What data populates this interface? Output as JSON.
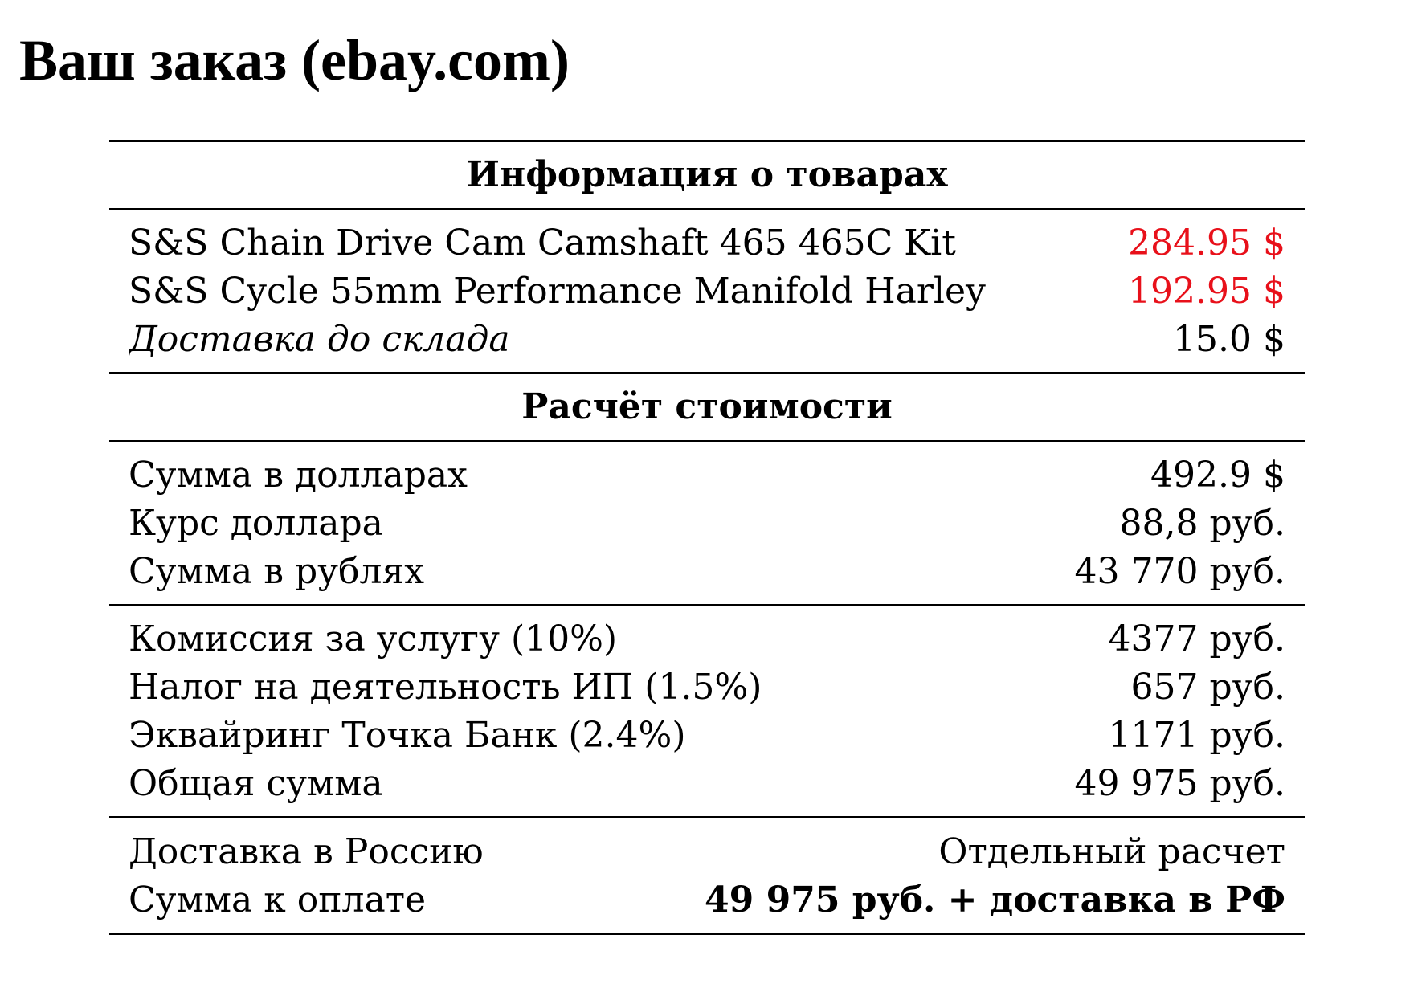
{
  "title": "Ваш заказ (ebay.com)",
  "colors": {
    "price": "#e8101a",
    "text": "#000000",
    "background": "#ffffff"
  },
  "items_section": {
    "header": "Информация о товарах",
    "items": [
      {
        "name": "S&S Chain Drive Cam Camshaft 465 465C Kit",
        "price": "284.95 $"
      },
      {
        "name": "S&S Cycle 55mm Performance Manifold Harley",
        "price": "192.95 $"
      }
    ],
    "shipping": {
      "label": "Доставка до склада",
      "value": "15.0 $"
    }
  },
  "calc_section": {
    "header": "Расчёт стоимости",
    "conversion": [
      {
        "label": "Сумма в долларах",
        "value": "492.9 $"
      },
      {
        "label": "Курс доллара",
        "value": "88,8 руб."
      },
      {
        "label": "Сумма в рублях",
        "value": "43 770 руб."
      }
    ],
    "fees": [
      {
        "label": "Комиссия за услугу (10%)",
        "value": "4377 руб."
      },
      {
        "label": "Налог на деятельность ИП (1.5%)",
        "value": "657 руб."
      },
      {
        "label": "Эквайринг Точка Банк (2.4%)",
        "value": "1171 руб."
      },
      {
        "label": "Общая сумма",
        "value": "49 975 руб."
      }
    ],
    "final": [
      {
        "label": "Доставка в Россию",
        "value": "Отдельный расчет"
      },
      {
        "label": "Сумма к оплате",
        "value": "49 975 руб. + доставка в РФ"
      }
    ]
  }
}
